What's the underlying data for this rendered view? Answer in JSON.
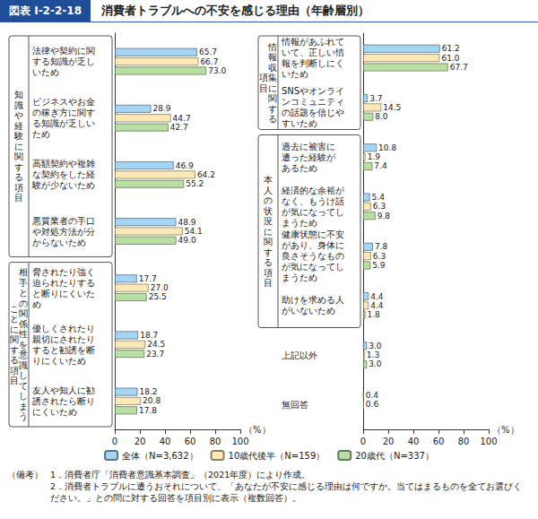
{
  "figure_label": "図表 I-2-2-18",
  "title": "消費者トラブルへの不安を感じる理由（年齢層別）",
  "notes_heading": "（備考）",
  "notes": [
    "1．消費者庁「消費者意識基本調査」（2021年度）により作成。",
    "2．消費者トラブルに遭うおそれについて、「あなたが不安に感じる理由は何ですか。当てはまるものを全てお選びください。」との問に対する回答を項目別に表示（複数回答）。"
  ],
  "chart_data": [
    {
      "type": "bar",
      "orientation": "horizontal",
      "data_labels": true,
      "grid": false,
      "legend": "bottom",
      "xlabel": "（%）",
      "xlim": [
        0,
        100
      ],
      "xticks": [
        0,
        20,
        40,
        60,
        80,
        100
      ],
      "groups": [
        {
          "label": "知識や経験に関する項目",
          "count": 4
        },
        {
          "label": "相手との関係性を意識してしまうことに関する項目",
          "count": 3
        }
      ],
      "categories": [
        "法律や契約に関\nする知識が乏し\nいため",
        "ビジネスやお金\nの稼ぎ方に関す\nる知識が乏しい\nため",
        "高額契約や複雑\nな契約をした経\n験が少ないため",
        "悪質業者の手口\nや対処方法が分\nからないため",
        "脅されたり強く\n迫られたりする\nと断りにくいた\nめ",
        "優しくされたり\n親切にされたり\nすると勧誘を断\nりにくいため",
        "友人や知人に勧\n誘されたら断り\nにくいため"
      ],
      "series": [
        {
          "name": "全体（N=3,632）",
          "color": "#a5d5f2",
          "values": [
            65.7,
            28.9,
            46.9,
            48.9,
            17.7,
            18.7,
            18.2
          ],
          "value_labels": [
            "65.7",
            "28.9",
            "46.9",
            "48.9",
            "17.7",
            "18.7",
            "18.2"
          ]
        },
        {
          "name": "10歳代後半（N=159）",
          "color": "#fde9b8",
          "values": [
            66.7,
            44.7,
            64.2,
            54.1,
            27.0,
            24.5,
            20.8
          ],
          "value_labels": [
            "66.7",
            "44.7",
            "64.2",
            "54.1",
            "27.0",
            "24.5",
            "20.8"
          ]
        },
        {
          "name": "20歳代（N=337）",
          "color": "#b9dfa4",
          "values": [
            73.0,
            42.7,
            55.2,
            49.0,
            25.5,
            23.7,
            17.8
          ],
          "value_labels": [
            "73.0",
            "42.7",
            "55.2",
            "49.0",
            "25.5",
            "23.7",
            "17.8"
          ]
        }
      ]
    },
    {
      "type": "bar",
      "orientation": "horizontal",
      "data_labels": true,
      "grid": false,
      "xlabel": "（%）",
      "xlim": [
        0,
        100
      ],
      "xticks": [
        0,
        20,
        40,
        60,
        80,
        100
      ],
      "groups": [
        {
          "label": "情報収集に関する項目",
          "count": 2
        },
        {
          "label": "本人の状況に関する項目",
          "count": 4
        }
      ],
      "categories": [
        "情報があふれて\nいて、正しい情\n報を判断しにく\nいため",
        "SNSやオンライ\nンコミュニティ\nの話題を信じや\nすいため",
        "過去に被害に\n遭った経験が\nあるため",
        "経済的な余裕が\nなく、もうけ話\nが気になってし\nまうため",
        "健康状態に不安\nがあり、身体に\n良さそうなもの\nが気になってし\nまうため",
        "助けを求める人\nがいないため",
        "上記以外",
        "無回答"
      ],
      "series": [
        {
          "name": "全体（N=3,632）",
          "color": "#a5d5f2",
          "values": [
            61.2,
            3.7,
            10.8,
            5.4,
            7.8,
            4.4,
            3.0,
            0.4
          ],
          "value_labels": [
            "61.2",
            "3.7",
            "10.8",
            "5.4",
            "7.8",
            "4.4",
            "3.0",
            "0.4"
          ]
        },
        {
          "name": "10歳代後半（N=159）",
          "color": "#fde9b8",
          "values": [
            61.0,
            14.5,
            1.9,
            6.3,
            6.3,
            4.4,
            1.3,
            0.6
          ],
          "value_labels": [
            "61.0",
            "14.5",
            "1.9",
            "6.3",
            "6.3",
            "4.4",
            "1.3",
            "0.6"
          ]
        },
        {
          "name": "20歳代（N=337）",
          "color": "#b9dfa4",
          "values": [
            67.7,
            8.0,
            7.4,
            9.8,
            5.9,
            1.8,
            3.0,
            null
          ],
          "value_labels": [
            "67.7",
            "8.0",
            "7.4",
            "9.8",
            "5.9",
            "1.8",
            "3.0",
            null
          ]
        }
      ]
    }
  ]
}
